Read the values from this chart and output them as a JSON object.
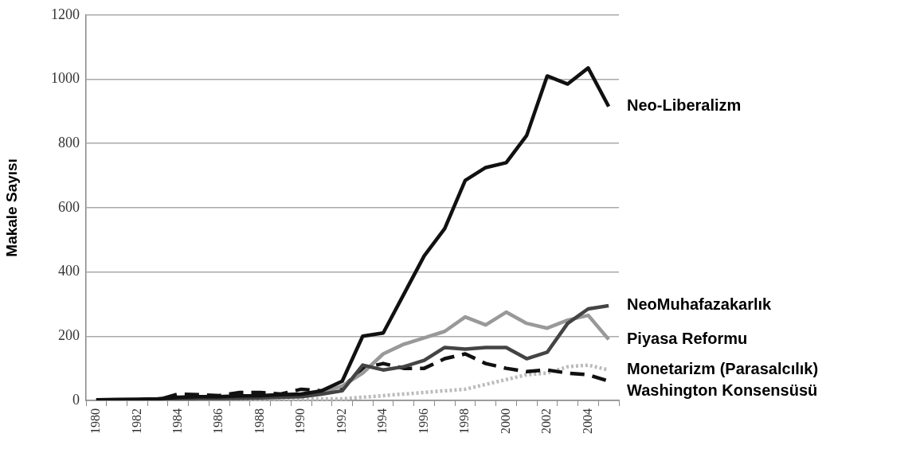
{
  "chart_data": {
    "type": "line",
    "ylabel": "Makale Sayısı",
    "categories": [
      "1980",
      null,
      "1982",
      null,
      "1984",
      null,
      "1986",
      null,
      "1988",
      null,
      "1990",
      null,
      "1992",
      null,
      "1994",
      null,
      "1996",
      null,
      "1998",
      null,
      "2000",
      null,
      "2002",
      null,
      "2004",
      null
    ],
    "ylim": [
      0,
      1200
    ],
    "yticks": [
      0,
      200,
      400,
      600,
      800,
      1000,
      1200
    ],
    "grid": "y",
    "legend": false,
    "marker": "none",
    "series": [
      {
        "name": "Neo-Liberalizm",
        "color": "#111111",
        "line_style": "solid",
        "values": [
          2,
          3,
          4,
          5,
          10,
          12,
          12,
          14,
          15,
          18,
          20,
          30,
          60,
          200,
          210,
          330,
          450,
          535,
          685,
          725,
          740,
          825,
          1010,
          985,
          1035,
          915
        ]
      },
      {
        "name": "NeoMuhafazakarlık",
        "color": "#444444",
        "line_style": "solid",
        "values": [
          1,
          2,
          2,
          3,
          5,
          6,
          6,
          7,
          8,
          10,
          12,
          20,
          30,
          110,
          95,
          105,
          125,
          165,
          160,
          165,
          165,
          130,
          150,
          240,
          285,
          295
        ]
      },
      {
        "name": "Piyasa Reformu",
        "color": "#999999",
        "line_style": "solid",
        "values": [
          1,
          2,
          2,
          3,
          5,
          6,
          6,
          8,
          10,
          12,
          15,
          25,
          45,
          85,
          145,
          175,
          195,
          215,
          260,
          235,
          275,
          240,
          225,
          250,
          265,
          190
        ]
      },
      {
        "name": "Washington Konsensüsü",
        "color": "#111111",
        "line_style": "dashed",
        "values": [
          0,
          0,
          0,
          2,
          20,
          18,
          15,
          25,
          25,
          20,
          35,
          30,
          40,
          100,
          115,
          100,
          100,
          130,
          145,
          115,
          100,
          90,
          95,
          85,
          80,
          60
        ]
      },
      {
        "name": "Monetarizm (Parasalcılık)",
        "color": "#bbbbbb",
        "line_style": "dotted",
        "values": [
          1,
          1,
          1,
          2,
          3,
          3,
          4,
          4,
          5,
          5,
          5,
          5,
          5,
          10,
          15,
          20,
          25,
          30,
          35,
          50,
          65,
          80,
          85,
          105,
          110,
          95
        ]
      }
    ]
  }
}
